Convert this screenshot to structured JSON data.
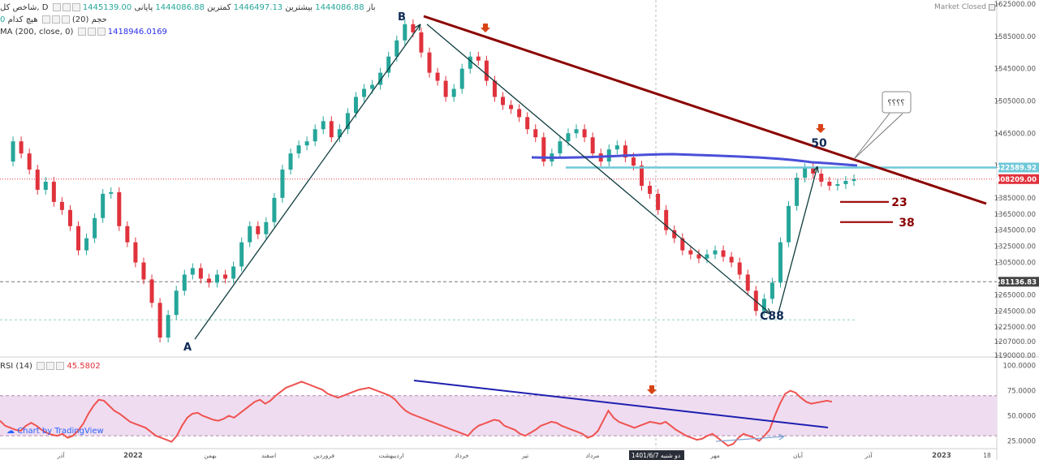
{
  "status": {
    "label": "Market Closed"
  },
  "legend": {
    "symbol_line": {
      "symbol": "شاخص کل, D",
      "open_label": "باز",
      "open_value": "1444086.88",
      "high_label": "بیشترین",
      "high_value": "1446497.13",
      "low_label": "کمترین",
      "low_value": "1444086.88",
      "close_label": "پایانی",
      "close_value": "1445139.00"
    },
    "volume_line": {
      "label": "حجم (20)",
      "value_label": "هیچ کدام",
      "value": "0"
    },
    "ma_line": {
      "label": "MA (200, close, 0)",
      "value": "1418946.0169"
    },
    "rsi_line": {
      "label": "RSI (14)",
      "value": "45.5802"
    }
  },
  "credit": "Chart by TradingView",
  "colors": {
    "up": "#26a69a",
    "down": "#e0323c",
    "ma": "#4a50d8",
    "trendline": "#8b0000",
    "wave": "#0f3d3e",
    "cyan_level": "#6fc8d8",
    "rsi": "#ef5350",
    "rsi_band": "#efdcf0",
    "rsi_trend": "#1f1fb0"
  },
  "chart_data": [
    {
      "type": "candlestick",
      "ylim": [
        1190000,
        1625000
      ],
      "y_ticks": [
        1625000,
        1585000,
        1545000,
        1505000,
        1465000,
        1425000,
        1385000,
        1365000,
        1345000,
        1325000,
        1305000,
        1265000,
        1245000,
        1225000,
        1207000,
        1190000
      ],
      "price_labels": [
        "1625000.00",
        "1585000.00",
        "1545000.00",
        "1505000.00",
        "1465000.00",
        "1422589.92",
        "1408209.00",
        "1385000.00",
        "1365000.00",
        "1345000.00",
        "1325000.00",
        "1305000.00",
        "1281136.83",
        "1265000.00",
        "1245000.00",
        "1225000.00",
        "1207000.00",
        "1190000.00"
      ],
      "highlight_prices": [
        {
          "value": 1422589.92,
          "text": "1422589.92",
          "color": "#6fc8d8"
        },
        {
          "value": 1408209.0,
          "text": "1408209.00",
          "color": "#e0323c"
        },
        {
          "value": 1281136.83,
          "text": "1281136.83",
          "color": "#444444"
        }
      ],
      "x_labels": [
        "آذر",
        "2022",
        "بهمن",
        "اسفند",
        "فروردین",
        "اردیبهشت",
        "خرداد",
        "تیر",
        "مرداد",
        "1401/6/7 دو شنبه",
        "مهر",
        "آبان",
        "آذر",
        "2023",
        "18"
      ],
      "wave_points": [
        {
          "label": "A",
          "value": 1210000
        },
        {
          "label": "B",
          "value": 1600000
        },
        {
          "label": "C88",
          "value": 1241000
        },
        {
          "label": "50",
          "value": 1424000
        }
      ],
      "fib_levels": [
        {
          "label": "23",
          "value": 1380000
        },
        {
          "label": "38",
          "value": 1355000
        }
      ],
      "callout": "؟؟؟؟",
      "close_path": [
        1430000,
        1455000,
        1440000,
        1420000,
        1395000,
        1405000,
        1380000,
        1370000,
        1350000,
        1320000,
        1335000,
        1360000,
        1390000,
        1392000,
        1350000,
        1330000,
        1305000,
        1284000,
        1255000,
        1212000,
        1240000,
        1270000,
        1290000,
        1298000,
        1285000,
        1280000,
        1290000,
        1285000,
        1300000,
        1330000,
        1350000,
        1340000,
        1355000,
        1385000,
        1420000,
        1440000,
        1450000,
        1455000,
        1470000,
        1480000,
        1460000,
        1470000,
        1490000,
        1510000,
        1520000,
        1525000,
        1540000,
        1560000,
        1580000,
        1600000,
        1590000,
        1565000,
        1540000,
        1530000,
        1510000,
        1520000,
        1545000,
        1560000,
        1555000,
        1530000,
        1510000,
        1500000,
        1495000,
        1485000,
        1470000,
        1460000,
        1430000,
        1440000,
        1455000,
        1465000,
        1470000,
        1460000,
        1440000,
        1430000,
        1445000,
        1450000,
        1435000,
        1425000,
        1400000,
        1390000,
        1370000,
        1345000,
        1335000,
        1320000,
        1315000,
        1310000,
        1315000,
        1320000,
        1312000,
        1305000,
        1290000,
        1270000,
        1245000,
        1260000,
        1280000,
        1330000,
        1375000,
        1410000,
        1422000,
        1415000,
        1405000,
        1400000,
        1402000,
        1406000,
        1408000
      ]
    },
    {
      "type": "line",
      "title": "RSI (14)",
      "ylim": [
        18000,
        103000
      ],
      "y_ticks": [
        100000,
        75000,
        50000,
        25000
      ],
      "y_tick_labels": [
        "100.0000",
        "75.0000",
        "50.0000",
        "25.0000"
      ],
      "band": [
        30000,
        70000
      ],
      "series": [
        {
          "values": [
            45,
            40,
            38,
            36,
            35,
            40,
            43,
            40,
            36,
            33,
            31,
            30,
            32,
            28,
            30,
            35,
            42,
            52,
            60,
            66,
            65,
            60,
            55,
            52,
            48,
            44,
            42,
            40,
            38,
            34,
            30,
            28,
            26,
            24,
            30,
            40,
            48,
            52,
            53,
            50,
            48,
            46,
            45,
            47,
            50,
            48,
            52,
            56,
            60,
            64,
            66,
            62,
            65,
            70,
            74,
            78,
            80,
            82,
            84,
            82,
            80,
            78,
            76,
            72,
            70,
            68,
            70,
            72,
            74,
            76,
            77,
            78,
            76,
            74,
            72,
            70,
            66,
            60,
            55,
            52,
            50,
            48,
            46,
            44,
            42,
            40,
            38,
            36,
            34,
            32,
            30,
            36,
            40,
            42,
            44,
            46,
            45,
            40,
            38,
            36,
            32,
            30,
            33,
            36,
            40,
            42,
            44,
            43,
            40,
            38,
            36,
            34,
            32,
            28,
            30,
            35,
            45,
            55,
            48,
            44,
            42,
            40,
            38,
            40,
            42,
            44,
            43,
            42,
            44,
            40,
            36,
            33,
            30,
            28,
            26,
            27,
            30,
            32,
            28,
            24,
            20,
            22,
            28,
            32,
            30,
            28,
            25,
            30,
            36,
            50,
            62,
            72,
            75,
            73,
            68,
            64,
            62,
            63,
            64,
            65,
            64
          ]
        }
      ]
    }
  ]
}
